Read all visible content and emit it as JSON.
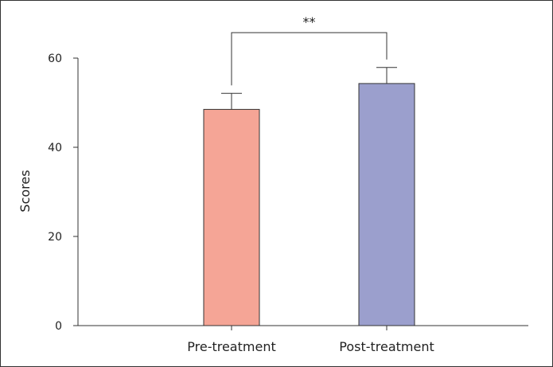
{
  "chart_data": {
    "type": "bar",
    "categories": [
      "Pre-treatment",
      "Post-treatment"
    ],
    "values": [
      48.5,
      54.3
    ],
    "errors": [
      3.6,
      3.6
    ],
    "xlabel": "",
    "ylabel": "Scores",
    "ylim": [
      0,
      60
    ],
    "yticks": [
      0,
      20,
      40,
      60
    ],
    "grid": false,
    "bar_colors": [
      "#f5a596",
      "#9b9fcd"
    ],
    "significance": {
      "between": [
        0,
        1
      ],
      "label": "**"
    }
  }
}
